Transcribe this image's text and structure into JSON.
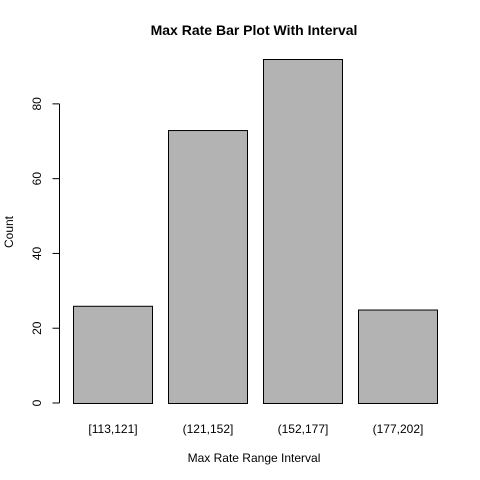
{
  "chart_data": {
    "type": "bar",
    "title": "Max Rate Bar Plot With Interval",
    "xlabel": "Max Rate Range Interval",
    "ylabel": "Count",
    "categories": [
      "[113,121]",
      "(121,152]",
      "(152,177]",
      "(177,202]"
    ],
    "values": [
      26,
      73,
      92,
      25
    ],
    "ylim": [
      0,
      92
    ],
    "yticks": [
      0,
      20,
      40,
      60,
      80
    ],
    "grid": false,
    "legend": "none",
    "bar_color": "#b3b3b3",
    "bar_border_color": "#000000"
  }
}
